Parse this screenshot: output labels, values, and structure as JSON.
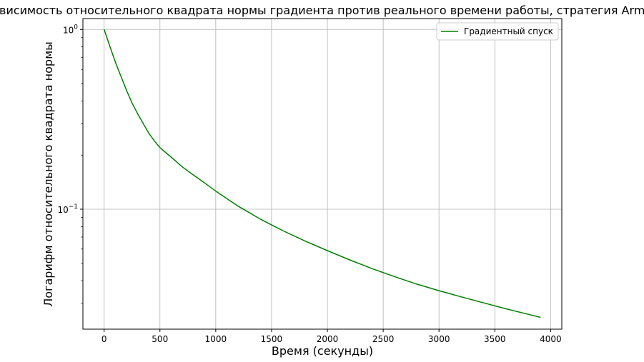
{
  "chart_data": {
    "type": "line",
    "title": "Зависимость относительного квадрата нормы градиента против реального времени работы, стратегия Armijo",
    "xlabel": "Время (секунды)",
    "ylabel": "Логарифм относительного квадрата нормы",
    "yscale": "log",
    "grid": true,
    "legend_position": "top-right",
    "xlim": [
      -190,
      4100
    ],
    "ylim": [
      0.0215,
      1.15
    ],
    "x_ticks": [
      0,
      500,
      1000,
      1500,
      2000,
      2500,
      3000,
      3500,
      4000
    ],
    "x_tick_labels": [
      "0",
      "500",
      "1000",
      "1500",
      "2000",
      "2500",
      "3000",
      "3500",
      "4000"
    ],
    "y_ticks": [
      {
        "value": 1.0,
        "base": "10",
        "exp": "0"
      },
      {
        "value": 0.1,
        "base": "10",
        "exp": "−1"
      }
    ],
    "series": [
      {
        "name": "Градиентный спуск",
        "color": "#008000",
        "x": [
          0,
          50,
          100,
          150,
          200,
          250,
          300,
          350,
          400,
          450,
          500,
          600,
          700,
          800,
          900,
          1000,
          1200,
          1400,
          1600,
          1800,
          2000,
          2200,
          2400,
          2600,
          2800,
          3000,
          3200,
          3400,
          3600,
          3800,
          3910
        ],
        "y": [
          1.0,
          0.81,
          0.66,
          0.55,
          0.46,
          0.39,
          0.34,
          0.3,
          0.265,
          0.24,
          0.22,
          0.195,
          0.172,
          0.155,
          0.14,
          0.126,
          0.104,
          0.088,
          0.076,
          0.0665,
          0.0588,
          0.0522,
          0.0467,
          0.0422,
          0.0383,
          0.0352,
          0.0325,
          0.0301,
          0.0279,
          0.026,
          0.025
        ]
      }
    ]
  }
}
